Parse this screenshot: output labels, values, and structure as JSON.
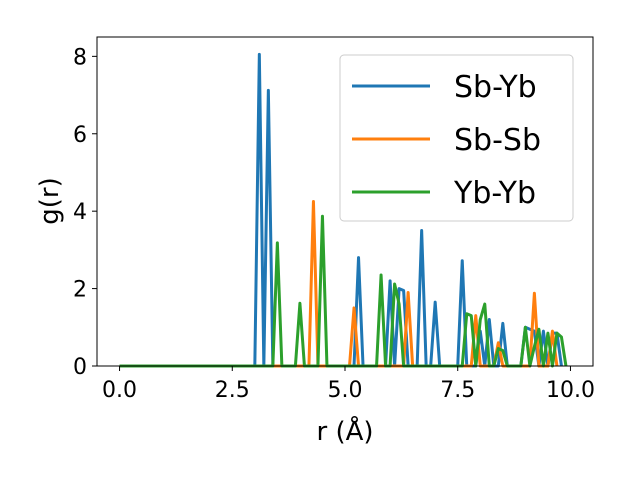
{
  "chart_data": {
    "type": "line",
    "xlabel": "r (Å)",
    "ylabel": "g(r)",
    "xlim": [
      -0.5,
      10.5
    ],
    "ylim": [
      0,
      8.5
    ],
    "xticks": [
      0.0,
      2.5,
      5.0,
      7.5,
      10.0
    ],
    "xtick_labels": [
      "0.0",
      "2.5",
      "5.0",
      "7.5",
      "10.0"
    ],
    "yticks": [
      0,
      2,
      4,
      6,
      8
    ],
    "ytick_labels": [
      "0",
      "2",
      "4",
      "6",
      "8"
    ],
    "grid": false,
    "legend": "top-right",
    "series": [
      {
        "name": "Sb-Yb",
        "color": "#1f77b4",
        "points": [
          [
            0,
            0
          ],
          [
            3.0,
            0
          ],
          [
            3.1,
            8.05
          ],
          [
            3.2,
            0
          ],
          [
            3.3,
            7.12
          ],
          [
            3.4,
            0
          ],
          [
            5.2,
            0
          ],
          [
            5.3,
            2.8
          ],
          [
            5.4,
            0
          ],
          [
            5.9,
            0
          ],
          [
            6.0,
            2.2
          ],
          [
            6.1,
            0
          ],
          [
            6.2,
            2.0
          ],
          [
            6.3,
            1.95
          ],
          [
            6.4,
            0
          ],
          [
            6.6,
            0
          ],
          [
            6.7,
            3.5
          ],
          [
            6.8,
            0
          ],
          [
            6.9,
            0
          ],
          [
            7.0,
            1.65
          ],
          [
            7.1,
            0
          ],
          [
            7.5,
            0
          ],
          [
            7.6,
            2.72
          ],
          [
            7.7,
            0
          ],
          [
            7.9,
            0
          ],
          [
            8.0,
            0.9
          ],
          [
            8.1,
            0
          ],
          [
            8.2,
            1.2
          ],
          [
            8.3,
            0
          ],
          [
            8.4,
            0
          ],
          [
            8.5,
            1.1
          ],
          [
            8.6,
            0
          ],
          [
            8.9,
            0
          ],
          [
            9.0,
            1.0
          ],
          [
            9.1,
            0.95
          ],
          [
            9.2,
            0.9
          ],
          [
            9.3,
            0
          ],
          [
            9.4,
            0.9
          ],
          [
            9.5,
            0
          ],
          [
            9.6,
            0.85
          ],
          [
            9.7,
            0.85
          ],
          [
            9.8,
            0
          ]
        ]
      },
      {
        "name": "Sb-Sb",
        "color": "#ff7f0e",
        "points": [
          [
            0,
            0
          ],
          [
            4.2,
            0
          ],
          [
            4.3,
            4.25
          ],
          [
            4.4,
            0
          ],
          [
            5.1,
            0
          ],
          [
            5.2,
            1.5
          ],
          [
            5.3,
            0
          ],
          [
            6.3,
            0
          ],
          [
            6.4,
            1.9
          ],
          [
            6.5,
            0
          ],
          [
            7.8,
            0
          ],
          [
            7.9,
            1.3
          ],
          [
            8.0,
            0
          ],
          [
            8.3,
            0
          ],
          [
            8.4,
            0.6
          ],
          [
            8.5,
            0
          ],
          [
            9.1,
            0
          ],
          [
            9.2,
            1.88
          ],
          [
            9.3,
            0
          ],
          [
            9.5,
            0
          ],
          [
            9.6,
            0.9
          ],
          [
            9.7,
            0
          ]
        ]
      },
      {
        "name": "Yb-Yb",
        "color": "#2ca02c",
        "points": [
          [
            0,
            0
          ],
          [
            3.4,
            0
          ],
          [
            3.5,
            3.18
          ],
          [
            3.6,
            0
          ],
          [
            3.9,
            0
          ],
          [
            4.0,
            1.62
          ],
          [
            4.1,
            0
          ],
          [
            4.4,
            0
          ],
          [
            4.5,
            3.87
          ],
          [
            4.6,
            0
          ],
          [
            5.7,
            0
          ],
          [
            5.8,
            2.35
          ],
          [
            5.9,
            0
          ],
          [
            6.0,
            0
          ],
          [
            6.1,
            2.12
          ],
          [
            6.2,
            1.6
          ],
          [
            6.3,
            0
          ],
          [
            7.6,
            0
          ],
          [
            7.7,
            1.35
          ],
          [
            7.8,
            1.3
          ],
          [
            7.9,
            0
          ],
          [
            8.0,
            1.2
          ],
          [
            8.1,
            1.6
          ],
          [
            8.2,
            0
          ],
          [
            8.3,
            0
          ],
          [
            8.4,
            0.45
          ],
          [
            8.5,
            0.4
          ],
          [
            8.6,
            0
          ],
          [
            8.9,
            0
          ],
          [
            9.0,
            1.0
          ],
          [
            9.1,
            0
          ],
          [
            9.2,
            0.5
          ],
          [
            9.3,
            0.95
          ],
          [
            9.4,
            0
          ],
          [
            9.5,
            0.85
          ],
          [
            9.6,
            0
          ],
          [
            9.7,
            0.85
          ],
          [
            9.8,
            0.75
          ],
          [
            9.9,
            0
          ]
        ]
      }
    ]
  }
}
